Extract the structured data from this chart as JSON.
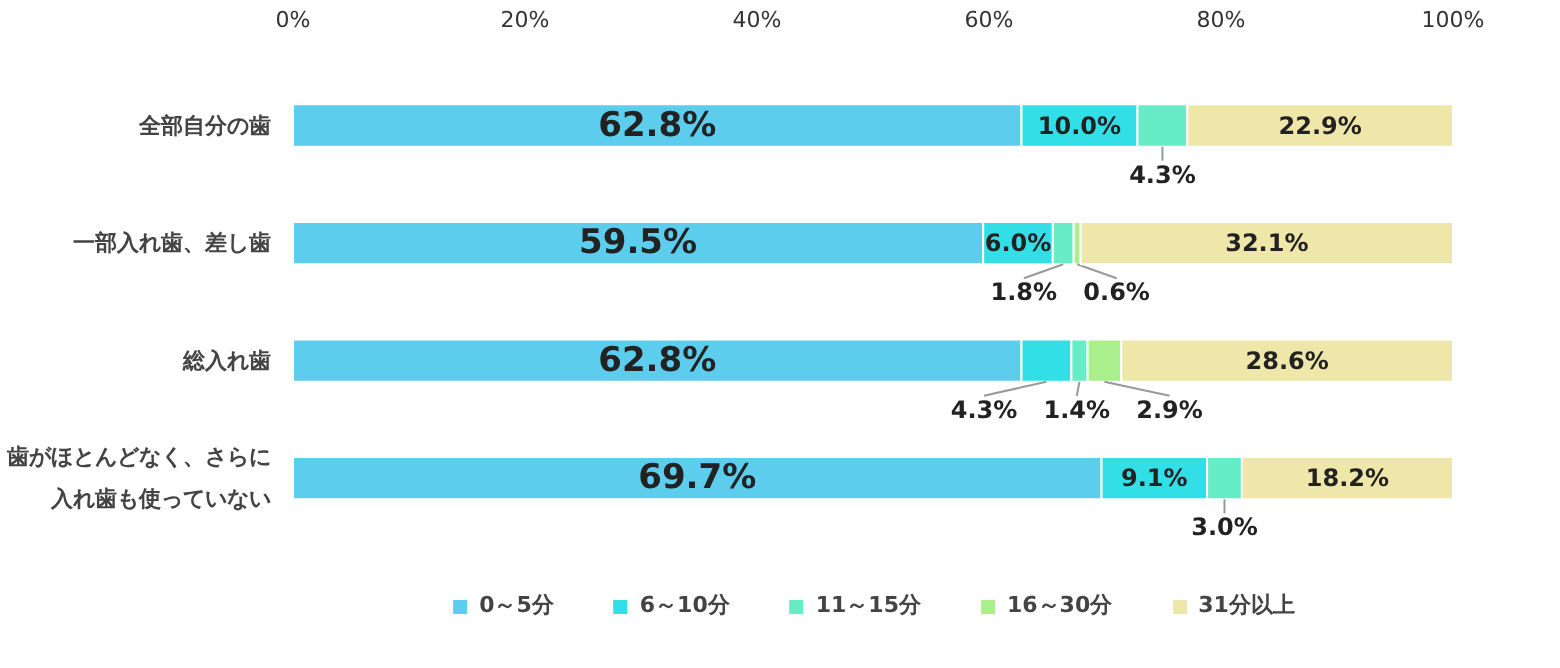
{
  "chart_data": {
    "type": "bar",
    "orientation": "horizontal",
    "stacked": true,
    "categories": [
      "全部自分の歯",
      "一部入れ歯、差し歯",
      "総入れ歯",
      "歯がほとんどなく、さらに入れ歯も使っていない"
    ],
    "series": [
      {
        "name": "0～5分",
        "color": "#5ccdec",
        "values": [
          62.8,
          59.5,
          62.8,
          69.7
        ],
        "value_labels": [
          "62.8%",
          "59.5%",
          "62.8%",
          "69.7%"
        ]
      },
      {
        "name": "6～10分",
        "color": "#33dfe6",
        "values": [
          10.0,
          6.0,
          4.3,
          9.1
        ],
        "value_labels": [
          "10.0%",
          "6.0%",
          "4.3%",
          "9.1%"
        ]
      },
      {
        "name": "11～15分",
        "color": "#66edc6",
        "values": [
          4.3,
          1.8,
          1.4,
          3.0
        ],
        "value_labels": [
          "4.3%",
          "1.8%",
          "1.4%",
          "3.0%"
        ]
      },
      {
        "name": "16～30分",
        "color": "#a9f08c",
        "values": [
          0,
          0.6,
          2.9,
          0
        ],
        "value_labels": [
          null,
          "0.6%",
          "2.9%",
          null
        ]
      },
      {
        "name": "31分以上",
        "color": "#efe6a9",
        "values": [
          22.9,
          32.1,
          28.6,
          18.2
        ],
        "value_labels": [
          "22.9%",
          "32.1%",
          "28.6%",
          "18.2%"
        ]
      }
    ],
    "xlim": [
      0,
      100
    ],
    "xticks": [
      {
        "value": 0,
        "label": "0%"
      },
      {
        "value": 20,
        "label": "20%"
      },
      {
        "value": 40,
        "label": "40%"
      },
      {
        "value": 60,
        "label": "60%"
      },
      {
        "value": 80,
        "label": "80%"
      },
      {
        "value": 100,
        "label": "100%"
      }
    ],
    "grid": false,
    "legend": "bottom"
  }
}
